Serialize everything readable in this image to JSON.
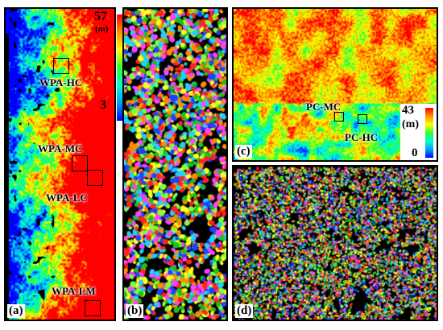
{
  "panels": {
    "a": {
      "tag": "(a)",
      "labels": {
        "hc": "WPA-HC",
        "mc": "WPA-MC",
        "lc": "WPA-LC",
        "lm": "WPA-LM"
      }
    },
    "b": {
      "tag": "(b)"
    },
    "c": {
      "tag": "(c)",
      "labels": {
        "mc": "PC-MC",
        "hc": "PC-HC"
      }
    },
    "d": {
      "tag": "(d)"
    }
  },
  "colorbar_left": {
    "max": "57",
    "unit": "(m)",
    "min": "3"
  },
  "colorbar_right": {
    "max": "43",
    "unit": "(m)",
    "min": "0"
  },
  "colors": {
    "ramp": [
      "#0000ff",
      "#00a0ff",
      "#00ffd0",
      "#30ff30",
      "#ffff00",
      "#ff9000",
      "#ff0000"
    ],
    "seg_palette": [
      "#ff2020",
      "#20c020",
      "#2040ff",
      "#ffff20",
      "#ff8c00",
      "#20d0ff",
      "#ff40ff",
      "#80ff40"
    ]
  }
}
